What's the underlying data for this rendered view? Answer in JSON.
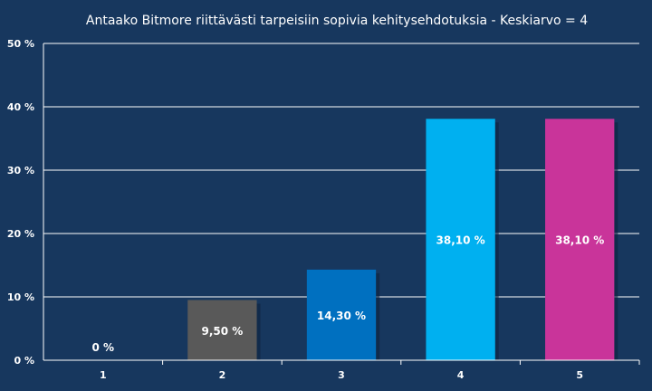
{
  "chart_data": {
    "type": "bar",
    "title": "Antaako Bitmore riittävästi tarpeisiin sopivia kehitysehdotuksia  - Keskiarvo = 4",
    "categories": [
      "1",
      "2",
      "3",
      "4",
      "5"
    ],
    "values": [
      0,
      9.5,
      14.3,
      38.1,
      38.1
    ],
    "value_labels": [
      "0 %",
      "9,50 %",
      "14,30 %",
      "38,10 %",
      "38,10 %"
    ],
    "bar_colors": [
      "#7f7f7f",
      "#595959",
      "#0070c0",
      "#00b0f0",
      "#c9349a"
    ],
    "ylim": [
      0,
      50
    ],
    "yticks": [
      0,
      10,
      20,
      30,
      40,
      50
    ],
    "ytick_labels": [
      "0 %",
      "10 %",
      "20 %",
      "30 %",
      "40 %",
      "50 %"
    ],
    "grid": true,
    "legend": "none"
  }
}
